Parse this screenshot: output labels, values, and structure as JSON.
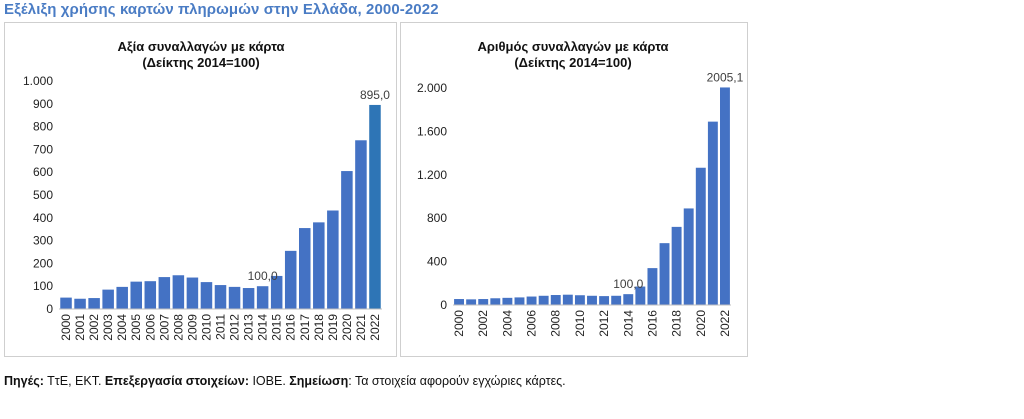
{
  "page": {
    "title": "Εξέλιξη χρήσης καρτών πληρωμών στην Ελλάδα, 2000-2022"
  },
  "footer": {
    "source_label": "Πηγές:",
    "source_text": " ΤτΕ, ΕΚΤ. ",
    "processing_label": "Επεξεργασία στοιχείων:",
    "processing_text": " ΙΟΒΕ. ",
    "note_label": "Σημείωση",
    "note_text": ": Τα στοιχεία αφορούν εγχώριες κάρτες."
  },
  "colors": {
    "bar": "#4472c4",
    "bar_highlight": "#2e75b6",
    "title_accent": "#4a7cc4"
  },
  "chart_data": [
    {
      "type": "bar",
      "title": "Αξία συναλλαγών με κάρτα",
      "subtitle": "(Δείκτης 2014=100)",
      "categories": [
        "2000",
        "2001",
        "2002",
        "2003",
        "2004",
        "2005",
        "2006",
        "2007",
        "2008",
        "2009",
        "2010",
        "2011",
        "2012",
        "2013",
        "2014",
        "2015",
        "2016",
        "2017",
        "2018",
        "2019",
        "2020",
        "2021",
        "2022"
      ],
      "values": [
        50,
        45,
        48,
        85,
        97,
        120,
        122,
        140,
        148,
        138,
        118,
        105,
        97,
        92,
        100,
        145,
        255,
        355,
        380,
        432,
        605,
        740,
        895
      ],
      "highlight_index": 22,
      "ylim": [
        0,
        1000
      ],
      "yticks": [
        0,
        100,
        200,
        300,
        400,
        500,
        600,
        700,
        800,
        900,
        1000
      ],
      "ytick_labels": [
        "0",
        "100",
        "200",
        "300",
        "400",
        "500",
        "600",
        "700",
        "800",
        "900",
        "1.000"
      ],
      "xtick_labels": [
        "2000",
        "2001",
        "2002",
        "2003",
        "2004",
        "2005",
        "2006",
        "2007",
        "2008",
        "2009",
        "2010",
        "2011",
        "2012",
        "2013",
        "2014",
        "2015",
        "2016",
        "2017",
        "2018",
        "2019",
        "2020",
        "2021",
        "2022"
      ],
      "annotations": [
        {
          "index": 14,
          "text": "100,0"
        },
        {
          "index": 22,
          "text": "895,0"
        }
      ],
      "grid": false
    },
    {
      "type": "bar",
      "title": "Αριθμός συναλλαγών με κάρτα",
      "subtitle": "(Δείκτης 2014=100)",
      "categories": [
        "2000",
        "2001",
        "2002",
        "2003",
        "2004",
        "2005",
        "2006",
        "2007",
        "2008",
        "2009",
        "2010",
        "2011",
        "2012",
        "2013",
        "2014",
        "2015",
        "2016",
        "2017",
        "2018",
        "2019",
        "2020",
        "2021",
        "2022"
      ],
      "values": [
        55,
        52,
        55,
        62,
        66,
        70,
        78,
        85,
        92,
        95,
        90,
        85,
        82,
        85,
        100,
        170,
        340,
        570,
        720,
        890,
        1265,
        1690,
        2005.1
      ],
      "highlight_index": -1,
      "ylim": [
        0,
        2000
      ],
      "yticks": [
        0,
        400,
        800,
        1200,
        1600,
        2000
      ],
      "ytick_labels": [
        "0",
        "400",
        "800",
        "1.200",
        "1.600",
        "2.000"
      ],
      "xtick_labels": [
        "2000",
        "",
        "2002",
        "",
        "2004",
        "",
        "2006",
        "",
        "2008",
        "",
        "2010",
        "",
        "2012",
        "",
        "2014",
        "",
        "2016",
        "",
        "2018",
        "",
        "2020",
        "",
        "2022"
      ],
      "annotations": [
        {
          "index": 14,
          "text": "100,0"
        },
        {
          "index": 22,
          "text": "2005,1"
        }
      ],
      "grid": false
    }
  ]
}
